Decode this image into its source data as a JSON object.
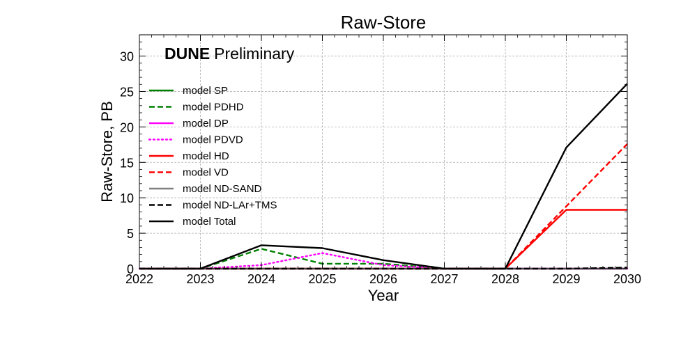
{
  "chart_data": {
    "type": "line",
    "title": "Raw-Store",
    "annotation_bold": "DUNE",
    "annotation_rest": "Preliminary",
    "xlabel": "Year",
    "ylabel": "Raw-Store, PB",
    "xlim": [
      2022,
      2030
    ],
    "ylim": [
      0,
      33
    ],
    "xticks": [
      2022,
      2023,
      2024,
      2025,
      2026,
      2027,
      2028,
      2029,
      2030
    ],
    "yticks": [
      0,
      5,
      10,
      15,
      20,
      25,
      30
    ],
    "grid": true,
    "legend_position": "upper-left",
    "x": [
      2022,
      2023,
      2024,
      2025,
      2026,
      2027,
      2028,
      2029,
      2030
    ],
    "series": [
      {
        "name": "model SP",
        "color": "#008000",
        "dash": "solid",
        "values": [
          0,
          0,
          0,
          0,
          0,
          0,
          0,
          0,
          0
        ]
      },
      {
        "name": "model PDHD",
        "color": "#008000",
        "dash": "dashed",
        "values": [
          0,
          0,
          2.8,
          0.7,
          0.7,
          0,
          0,
          0,
          0
        ]
      },
      {
        "name": "model DP",
        "color": "#ff00ff",
        "dash": "solid",
        "values": [
          0,
          0,
          0,
          0,
          0,
          0,
          0,
          0,
          0
        ]
      },
      {
        "name": "model PDVD",
        "color": "#ff00ff",
        "dash": "dotted",
        "values": [
          0,
          0,
          0.5,
          2.2,
          0.5,
          0,
          0,
          0,
          0
        ]
      },
      {
        "name": "model HD",
        "color": "#ff0000",
        "dash": "solid",
        "values": [
          0,
          0,
          0,
          0,
          0,
          0,
          0,
          8.3,
          8.3
        ]
      },
      {
        "name": "model VD",
        "color": "#ff0000",
        "dash": "dashed",
        "values": [
          0,
          0,
          0,
          0,
          0,
          0,
          0,
          8.8,
          17.6
        ]
      },
      {
        "name": "model ND-SAND",
        "color": "#808080",
        "dash": "solid",
        "values": [
          0,
          0,
          0,
          0,
          0,
          0,
          0,
          0,
          0
        ]
      },
      {
        "name": "model ND-LAr+TMS",
        "color": "#000000",
        "dash": "dashed",
        "values": [
          0,
          0,
          0,
          0,
          0,
          0,
          0,
          0,
          0.15
        ]
      },
      {
        "name": "model Total",
        "color": "#000000",
        "dash": "solid",
        "values": [
          0,
          0,
          3.3,
          2.9,
          1.2,
          0,
          0,
          17.1,
          26.1
        ]
      }
    ]
  }
}
